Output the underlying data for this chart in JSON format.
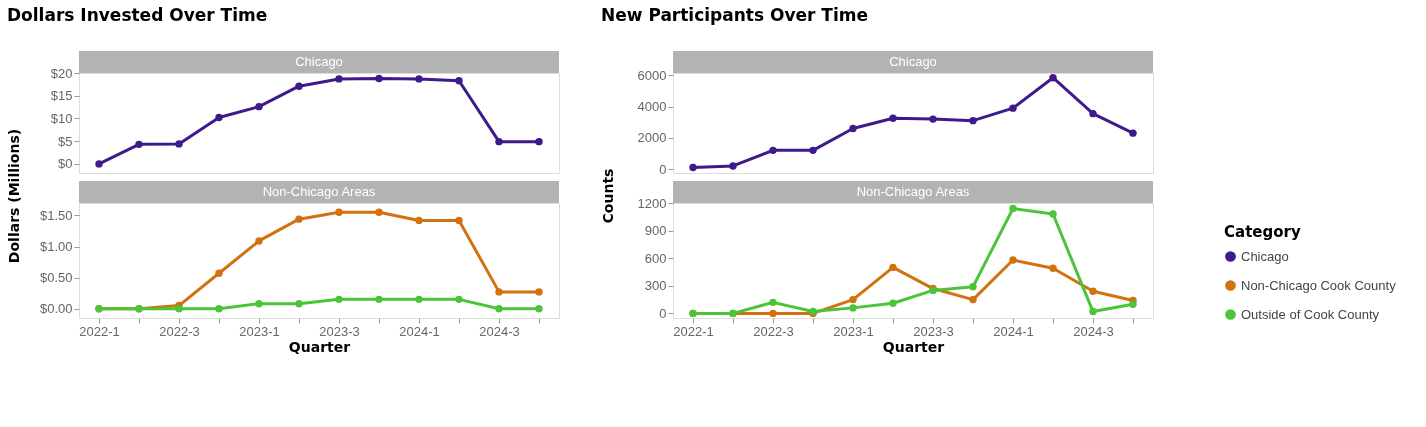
{
  "chart_data": [
    {
      "type": "line",
      "title": "Dollars Invested Over Time",
      "subtitle": "Chicago",
      "ylabel": "Dollars (Millions)",
      "categories": [
        "2022-1",
        null,
        "2022-3",
        null,
        "2023-1",
        null,
        "2023-3",
        null,
        "2024-1",
        null,
        "2024-3",
        null
      ],
      "series": [
        {
          "name": "Chicago",
          "color": "#3f1a8a",
          "values": [
            0,
            4.3,
            4.4,
            10.2,
            12.6,
            17.1,
            18.7,
            18.8,
            18.7,
            18.3,
            4.9,
            4.9
          ]
        }
      ],
      "ylim": [
        -2,
        20
      ],
      "yticks": [
        {
          "value": 0,
          "label": "$0"
        },
        {
          "value": 5,
          "label": "$5"
        },
        {
          "value": 10,
          "label": "$10"
        },
        {
          "value": 15,
          "label": "$15"
        },
        {
          "value": 20,
          "label": "$20"
        }
      ],
      "tick_labels": "y",
      "grid": false,
      "marker": "circle",
      "line_style": "solid",
      "legend": "right"
    },
    {
      "type": "line",
      "subtitle": "Non-Chicago Areas",
      "xlabel": "Quarter",
      "categories": [
        "2022-1",
        null,
        "2022-3",
        null,
        "2023-1",
        null,
        "2023-3",
        null,
        "2024-1",
        null,
        "2024-3",
        null
      ],
      "series": [
        {
          "name": "Non-Chicago Cook County",
          "color": "#d1720f",
          "values": [
            0,
            0,
            0.05,
            0.57,
            1.09,
            1.44,
            1.55,
            1.55,
            1.42,
            1.42,
            0.27,
            0.27
          ]
        },
        {
          "name": "Outside of Cook County",
          "color": "#4cc43a",
          "values": [
            0,
            0,
            0,
            0,
            0.08,
            0.08,
            0.15,
            0.15,
            0.15,
            0.15,
            0,
            0
          ]
        }
      ],
      "ylim": [
        -0.15,
        1.7
      ],
      "yticks": [
        {
          "value": 0,
          "label": "$0.00"
        },
        {
          "value": 0.5,
          "label": "$0.50"
        },
        {
          "value": 1,
          "label": "$1.00"
        },
        {
          "value": 1.5,
          "label": "$1.50"
        }
      ],
      "grid": false,
      "marker": "circle",
      "line_style": "solid",
      "legend": "right"
    },
    {
      "type": "line",
      "title": "New Participants Over Time",
      "subtitle": "Chicago",
      "ylabel": "Counts",
      "categories": [
        "2022-1",
        null,
        "2022-3",
        null,
        "2023-1",
        null,
        "2023-3",
        null,
        "2024-1",
        null,
        "2024-3",
        null
      ],
      "series": [
        {
          "color": "#3f1a8a",
          "values": [
            100,
            200,
            1200,
            1200,
            2600,
            3250,
            3200,
            3100,
            3900,
            5850,
            3550,
            2300
          ]
        }
      ],
      "ylim": [
        -250,
        6150
      ],
      "yticks": [
        0,
        2000,
        4000,
        6000
      ],
      "tick_labels": "y",
      "grid": false,
      "marker": "circle",
      "line_style": "solid"
    },
    {
      "type": "line",
      "subtitle": "Non-Chicago Areas",
      "xlabel": "Quarter",
      "legend_title": "Category",
      "categories": [
        "2022-1",
        null,
        "2022-3",
        null,
        "2023-1",
        null,
        "2023-3",
        null,
        "2024-1",
        null,
        "2024-3",
        null
      ],
      "series": [
        {
          "name": "Non-Chicago Cook County",
          "color": "#d1720f",
          "values": [
            0,
            0,
            0,
            0,
            150,
            500,
            270,
            150,
            580,
            490,
            240,
            140
          ]
        },
        {
          "name": "Outside of Cook County",
          "color": "#4cc43a",
          "values": [
            0,
            0,
            120,
            20,
            60,
            110,
            250,
            290,
            1140,
            1080,
            20,
            100
          ]
        }
      ],
      "ylim": [
        -50,
        1200
      ],
      "yticks": [
        0,
        300,
        600,
        900,
        1200
      ],
      "grid": false,
      "marker": "circle",
      "line_style": "solid",
      "legend": "right"
    }
  ]
}
